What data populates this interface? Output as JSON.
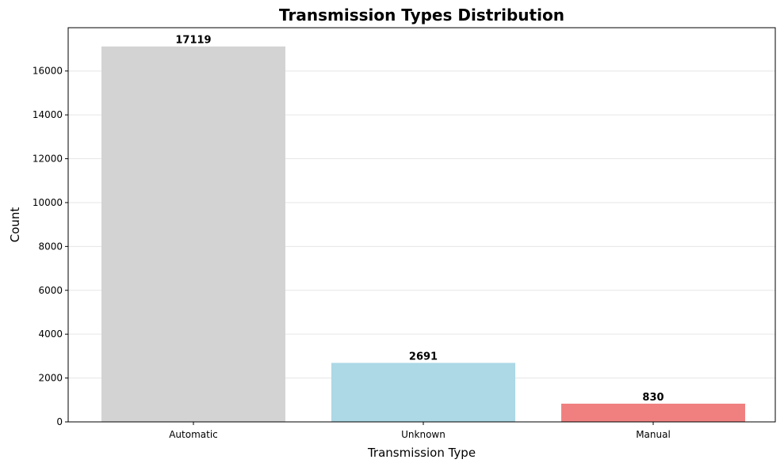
{
  "chart_data": {
    "type": "bar",
    "title": "Transmission Types Distribution",
    "xlabel": "Transmission Type",
    "ylabel": "Count",
    "categories": [
      "Automatic",
      "Unknown",
      "Manual"
    ],
    "values": [
      17119,
      2691,
      830
    ],
    "colors": [
      "#d3d3d3",
      "#add8e6",
      "#f08080"
    ],
    "ylim": [
      0,
      17975
    ],
    "yticks": [
      0,
      2000,
      4000,
      6000,
      8000,
      10000,
      12000,
      14000,
      16000
    ],
    "grid": "y",
    "legend": "none"
  }
}
